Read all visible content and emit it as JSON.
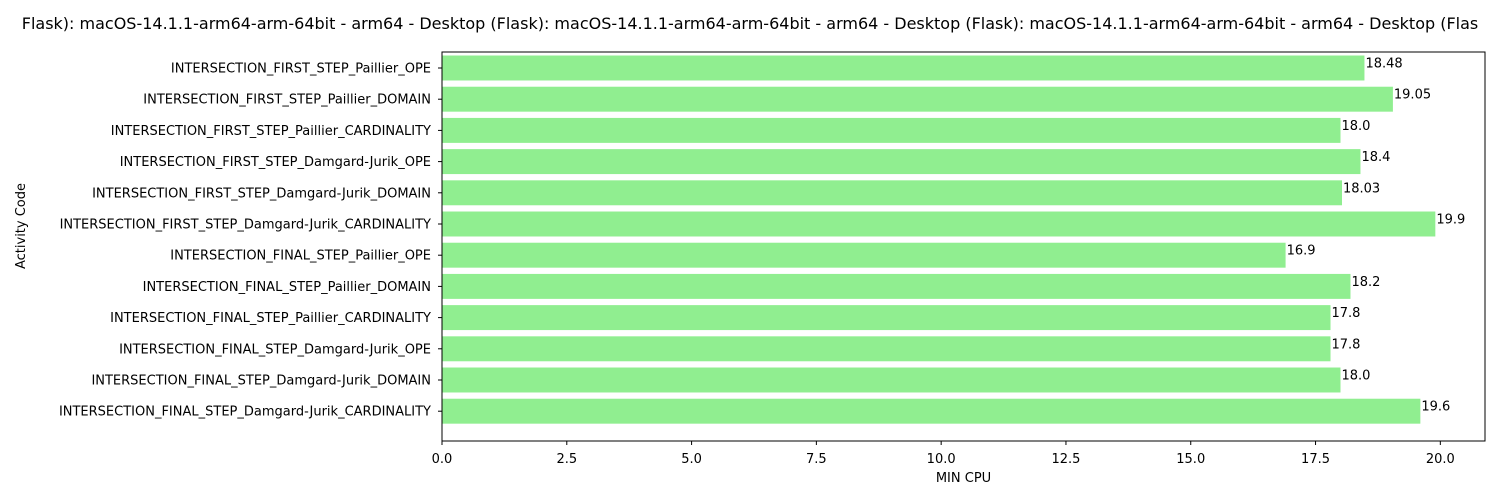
{
  "chart_data": {
    "type": "bar",
    "orientation": "horizontal",
    "title": "Flask): macOS-14.1.1-arm64-arm-64bit - arm64 - Desktop (Flask): macOS-14.1.1-arm64-arm-64bit - arm64 - Desktop (Flask): macOS-14.1.1-arm64-arm-64bit - arm64 - Desktop (Flas",
    "xlabel": "MIN CPU",
    "ylabel": "Activity Code",
    "categories": [
      "INTERSECTION_FIRST_STEP_Paillier_OPE",
      "INTERSECTION_FIRST_STEP_Paillier_DOMAIN",
      "INTERSECTION_FIRST_STEP_Paillier_CARDINALITY",
      "INTERSECTION_FIRST_STEP_Damgard-Jurik_OPE",
      "INTERSECTION_FIRST_STEP_Damgard-Jurik_DOMAIN",
      "INTERSECTION_FIRST_STEP_Damgard-Jurik_CARDINALITY",
      "INTERSECTION_FINAL_STEP_Paillier_OPE",
      "INTERSECTION_FINAL_STEP_Paillier_DOMAIN",
      "INTERSECTION_FINAL_STEP_Paillier_CARDINALITY",
      "INTERSECTION_FINAL_STEP_Damgard-Jurik_OPE",
      "INTERSECTION_FINAL_STEP_Damgard-Jurik_DOMAIN",
      "INTERSECTION_FINAL_STEP_Damgard-Jurik_CARDINALITY"
    ],
    "values": [
      18.48,
      19.05,
      18.0,
      18.4,
      18.03,
      19.9,
      16.9,
      18.2,
      17.8,
      17.8,
      18.0,
      19.6
    ],
    "value_labels": [
      "18.48",
      "19.05",
      "18.0",
      "18.4",
      "18.03",
      "19.9",
      "16.9",
      "18.2",
      "17.8",
      "17.8",
      "18.0",
      "19.6"
    ],
    "xticks": [
      "0.0",
      "2.5",
      "5.0",
      "7.5",
      "10.0",
      "12.5",
      "15.0",
      "17.5",
      "20.0"
    ],
    "xlim": [
      0,
      20.895
    ],
    "grid": false,
    "bar_color": "#90ee90"
  }
}
